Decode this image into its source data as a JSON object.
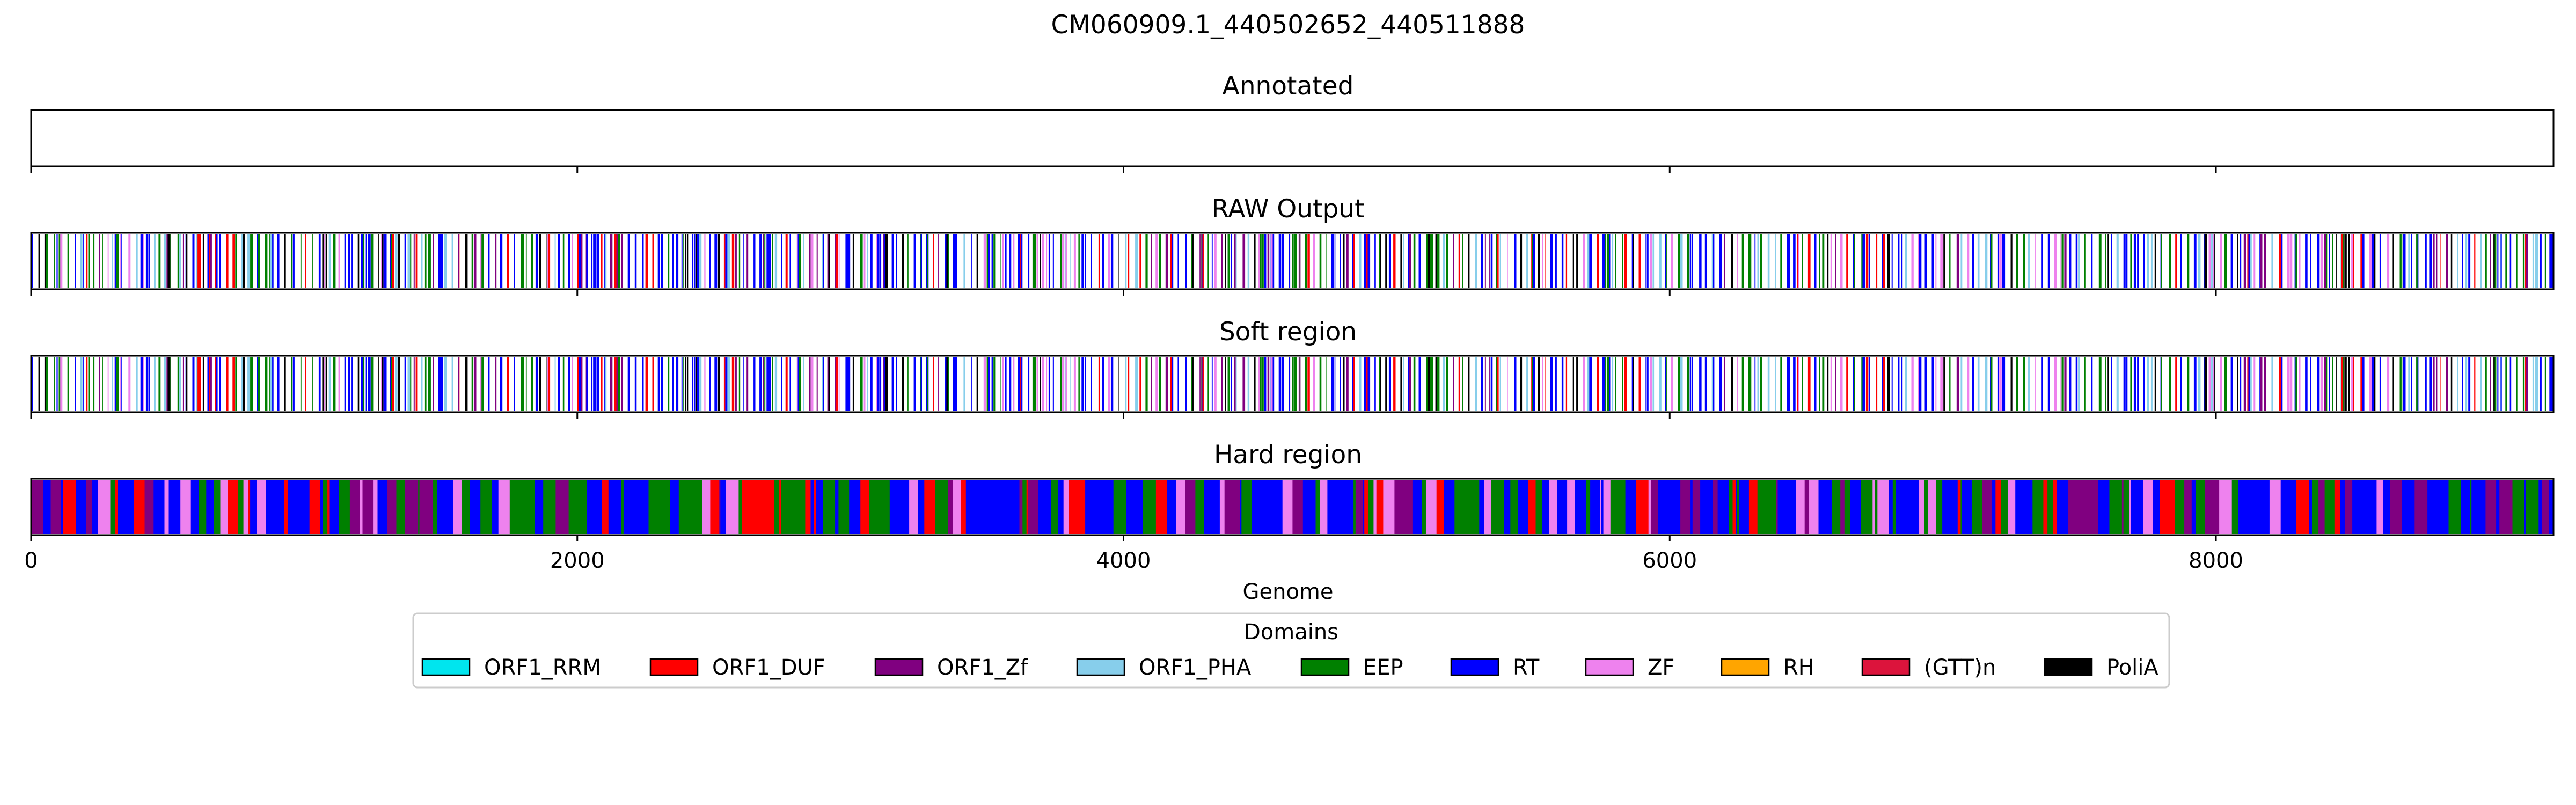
{
  "chart_data": {
    "type": "bar",
    "title": "CM060909.1_440502652_440511888",
    "xlabel": "Genome",
    "xlim": [
      0,
      9236
    ],
    "x_ticks": [
      {
        "value": 0,
        "label": "0"
      },
      {
        "value": 2000,
        "label": "2000"
      },
      {
        "value": 4000,
        "label": "4000"
      },
      {
        "value": 6000,
        "label": "6000"
      },
      {
        "value": 8000,
        "label": "8000"
      }
    ],
    "tracks": [
      {
        "id": "annotated",
        "title": "Annotated"
      },
      {
        "id": "raw",
        "title": "RAW Output"
      },
      {
        "id": "soft",
        "title": "Soft region"
      },
      {
        "id": "hard",
        "title": "Hard region"
      }
    ],
    "legend": {
      "title": "Domains",
      "placement": "bottom-center",
      "entries": [
        {
          "name": "ORF1_RRM",
          "color": "#00e5ee"
        },
        {
          "name": "ORF1_DUF",
          "color": "#ff0000"
        },
        {
          "name": "ORF1_Zf",
          "color": "#800080"
        },
        {
          "name": "ORF1_PHA",
          "color": "#87ceeb"
        },
        {
          "name": "EEP",
          "color": "#008000"
        },
        {
          "name": "RT",
          "color": "#0000ff"
        },
        {
          "name": "ZF",
          "color": "#ee82ee"
        },
        {
          "name": "RH",
          "color": "#ffa500"
        },
        {
          "name": "(GTT)n",
          "color": "#dc143c"
        },
        {
          "name": "PoliA",
          "color": "#000000"
        }
      ]
    }
  }
}
